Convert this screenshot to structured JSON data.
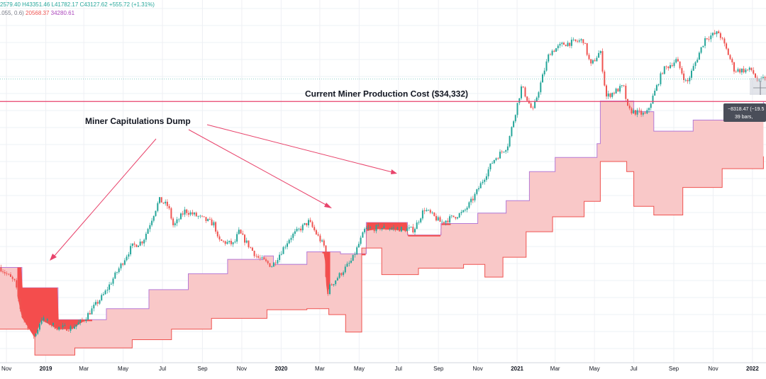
{
  "legend": {
    "ohlc": "2579.40  H43351.46  L41782.17  C43127.62  +555.72 (+1.31%)",
    "indicator_params": ".055, 0.6)",
    "indicator_value_1": "20568.37",
    "indicator_value_2": "34280.61"
  },
  "annotations": {
    "production_cost": "Current Miner Production Cost ($34,332)",
    "capitulation": "Miner Capitulations Dump"
  },
  "measure_tool": {
    "line1": "−8318.47 (−19.5",
    "line2": "39 bars,"
  },
  "colors": {
    "up": "#26a69a",
    "down": "#ef5350",
    "band_fill": "#f9c8c8",
    "band_upper": "#b57ad6",
    "band_lower": "#ef5350",
    "capitulation_fill": "#f44d4d",
    "production_line": "#e8436b",
    "arrow": "#e8436b",
    "grid": "#eef0f4"
  },
  "chart_data": {
    "type": "candlestick",
    "title": "",
    "x_tick_labels": [
      "Nov",
      "2019",
      "Mar",
      "May",
      "Jul",
      "Sep",
      "Nov",
      "2020",
      "Mar",
      "May",
      "Jul",
      "Sep",
      "Nov",
      "2021",
      "Mar",
      "May",
      "Jul",
      "Sep",
      "Nov",
      "2022"
    ],
    "x_tick_bold": [
      "2019",
      "2020",
      "2021",
      "2022"
    ],
    "x_tick_dates": [
      "2018-11-01",
      "2019-01-01",
      "2019-03-01",
      "2019-05-01",
      "2019-07-01",
      "2019-09-01",
      "2019-11-01",
      "2020-01-01",
      "2020-03-01",
      "2020-05-01",
      "2020-07-01",
      "2020-09-01",
      "2020-11-01",
      "2021-01-01",
      "2021-03-01",
      "2021-05-01",
      "2021-07-01",
      "2021-09-01",
      "2021-11-01",
      "2022-01-01"
    ],
    "x_range": [
      "2018-10-22",
      "2022-01-22"
    ],
    "y_scale": "log",
    "y_range": [
      2500,
      95000
    ],
    "price_path": [
      [
        "2018-10-22",
        6500
      ],
      [
        "2018-11-14",
        5600
      ],
      [
        "2018-11-25",
        4000
      ],
      [
        "2018-12-15",
        3250
      ],
      [
        "2018-12-25",
        3900
      ],
      [
        "2019-01-20",
        3550
      ],
      [
        "2019-02-10",
        3550
      ],
      [
        "2019-03-01",
        3850
      ],
      [
        "2019-04-02",
        5000
      ],
      [
        "2019-05-14",
        8000
      ],
      [
        "2019-06-01",
        8500
      ],
      [
        "2019-06-26",
        12800
      ],
      [
        "2019-07-10",
        12000
      ],
      [
        "2019-07-18",
        9800
      ],
      [
        "2019-08-05",
        11500
      ],
      [
        "2019-09-20",
        10000
      ],
      [
        "2019-09-25",
        8500
      ],
      [
        "2019-10-20",
        8200
      ],
      [
        "2019-10-27",
        9300
      ],
      [
        "2019-11-25",
        7200
      ],
      [
        "2019-12-18",
        6600
      ],
      [
        "2020-01-15",
        8800
      ],
      [
        "2020-02-13",
        10300
      ],
      [
        "2020-03-08",
        8000
      ],
      [
        "2020-03-12",
        4900
      ],
      [
        "2020-03-15",
        5300
      ],
      [
        "2020-04-20",
        7000
      ],
      [
        "2020-05-10",
        9500
      ],
      [
        "2020-06-01",
        9700
      ],
      [
        "2020-07-25",
        9500
      ],
      [
        "2020-08-10",
        11700
      ],
      [
        "2020-09-05",
        10200
      ],
      [
        "2020-10-10",
        11300
      ],
      [
        "2020-10-25",
        13000
      ],
      [
        "2020-11-25",
        19000
      ],
      [
        "2020-12-17",
        22000
      ],
      [
        "2021-01-08",
        40000
      ],
      [
        "2021-01-25",
        31000
      ],
      [
        "2021-02-20",
        56000
      ],
      [
        "2021-03-13",
        61000
      ],
      [
        "2021-04-14",
        63500
      ],
      [
        "2021-04-25",
        49000
      ],
      [
        "2021-05-10",
        57000
      ],
      [
        "2021-05-19",
        36000
      ],
      [
        "2021-06-15",
        40000
      ],
      [
        "2021-06-22",
        31500
      ],
      [
        "2021-07-20",
        30000
      ],
      [
        "2021-08-15",
        47000
      ],
      [
        "2021-09-05",
        52000
      ],
      [
        "2021-09-21",
        41000
      ],
      [
        "2021-10-20",
        65000
      ],
      [
        "2021-11-10",
        68500
      ],
      [
        "2021-11-26",
        54000
      ],
      [
        "2021-12-04",
        47000
      ],
      [
        "2021-12-31",
        47000
      ],
      [
        "2022-01-10",
        41500
      ],
      [
        "2022-01-18",
        43100
      ]
    ],
    "series": [
      {
        "name": "",
        "role": "band_upper",
        "points": [
          [
            "2018-10-22",
            6500
          ],
          [
            "2018-11-25",
            5300
          ],
          [
            "2019-01-20",
            3850
          ],
          [
            "2019-04-05",
            4300
          ],
          [
            "2019-06-10",
            5200
          ],
          [
            "2019-08-10",
            6100
          ],
          [
            "2019-10-10",
            7050
          ],
          [
            "2019-12-05",
            7300
          ],
          [
            "2019-12-20",
            6700
          ],
          [
            "2020-02-10",
            7600
          ],
          [
            "2020-04-02",
            7450
          ],
          [
            "2020-05-12",
            10200
          ],
          [
            "2020-07-15",
            9000
          ],
          [
            "2020-09-05",
            10100
          ],
          [
            "2020-11-01",
            11200
          ],
          [
            "2020-12-15",
            12700
          ],
          [
            "2021-01-20",
            17000
          ],
          [
            "2021-03-01",
            19600
          ],
          [
            "2021-05-05",
            22500
          ],
          [
            "2021-05-10",
            34500
          ],
          [
            "2021-07-01",
            31000
          ],
          [
            "2021-08-01",
            25500
          ],
          [
            "2021-10-01",
            28500
          ],
          [
            "2021-12-05",
            32500
          ],
          [
            "2022-01-18",
            34200
          ]
        ]
      },
      {
        "name": "",
        "role": "band_lower",
        "points": [
          [
            "2018-10-22",
            3500
          ],
          [
            "2018-12-15",
            2700
          ],
          [
            "2019-02-15",
            2900
          ],
          [
            "2019-05-15",
            3150
          ],
          [
            "2019-07-15",
            3500
          ],
          [
            "2019-09-15",
            3900
          ],
          [
            "2019-12-10",
            4250
          ],
          [
            "2020-02-10",
            4300
          ],
          [
            "2020-03-15",
            4050
          ],
          [
            "2020-04-10",
            3400
          ],
          [
            "2020-05-05",
            7900
          ],
          [
            "2020-06-05",
            6050
          ],
          [
            "2020-08-01",
            6450
          ],
          [
            "2020-10-10",
            6700
          ],
          [
            "2020-11-12",
            5900
          ],
          [
            "2020-12-10",
            7200
          ],
          [
            "2021-01-15",
            9300
          ],
          [
            "2021-02-25",
            10800
          ],
          [
            "2021-04-15",
            12600
          ],
          [
            "2021-05-10",
            18800
          ],
          [
            "2021-06-20",
            17000
          ],
          [
            "2021-07-01",
            12000
          ],
          [
            "2021-08-01",
            11000
          ],
          [
            "2021-09-15",
            14500
          ],
          [
            "2021-11-15",
            17500
          ],
          [
            "2022-01-18",
            19800
          ]
        ]
      }
    ],
    "capitulation_zones": [
      {
        "start": "2018-11-18",
        "end": "2019-03-15"
      },
      {
        "start": "2020-03-05",
        "end": "2020-03-18"
      },
      {
        "start": "2020-05-05",
        "end": "2020-09-20"
      }
    ],
    "horizontal_lines": [
      {
        "label": "Current Miner Production Cost ($34,332)",
        "value": 34332
      }
    ],
    "measure": {
      "change": -8318.47,
      "bars": 39
    },
    "grid": true
  }
}
